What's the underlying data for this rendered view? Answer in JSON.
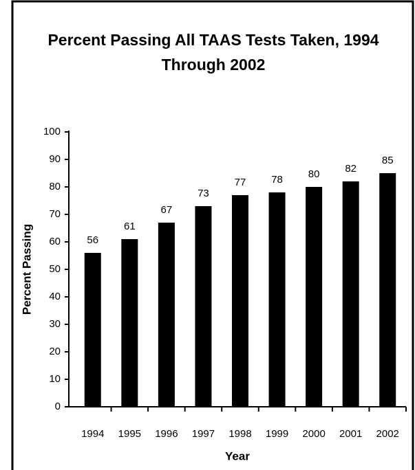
{
  "chart_data": {
    "type": "bar",
    "title": "Percent Passing All TAAS Tests Taken, 1994 Through 2002",
    "x_label": "Year",
    "y_label": "Percent Passing",
    "categories": [
      "1994",
      "1995",
      "1996",
      "1997",
      "1998",
      "1999",
      "2000",
      "2001",
      "2002"
    ],
    "values": [
      56,
      61,
      67,
      73,
      77,
      78,
      80,
      82,
      85
    ],
    "color": "#000000",
    "ylim": [
      0,
      100
    ],
    "yticks": [
      0,
      10,
      20,
      30,
      40,
      50,
      60,
      70,
      80,
      90,
      100
    ],
    "grid": false
  }
}
